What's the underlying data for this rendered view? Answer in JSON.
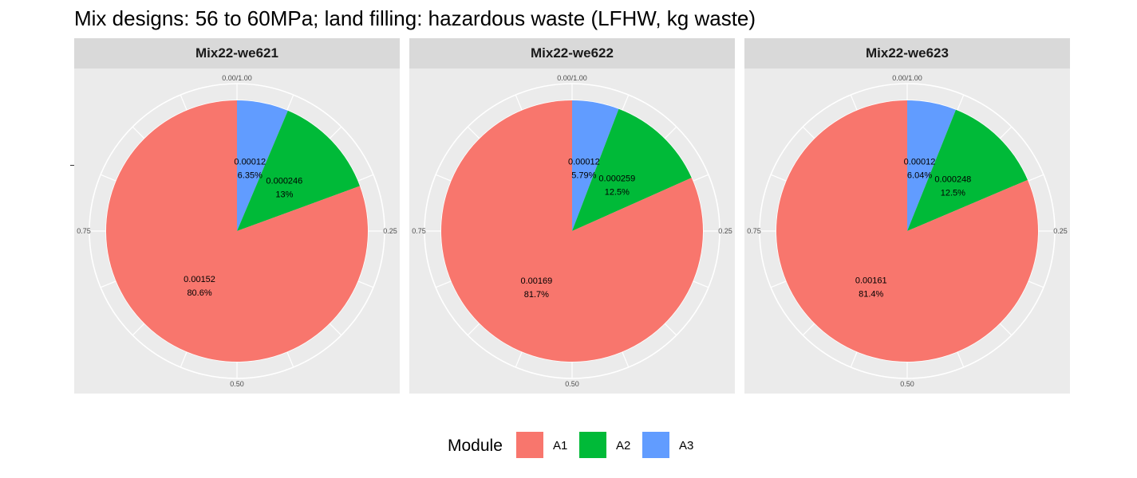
{
  "title": "Mix designs: 56 to 60MPa; land filling: hazardous waste (LFHW, kg waste)",
  "legend": {
    "title": "Module",
    "items": [
      {
        "label": "A1",
        "color": "#F8766D"
      },
      {
        "label": "A2",
        "color": "#00BA38"
      },
      {
        "label": "A3",
        "color": "#619CFF"
      }
    ]
  },
  "chart_data": [
    {
      "type": "pie",
      "facet": "Mix22-we621",
      "angle_ticks": [
        "0.00/1.00",
        "0.25",
        "0.50",
        "0.75"
      ],
      "slices": [
        {
          "module": "A3",
          "value": 0.00012,
          "value_label": "0.00012",
          "pct_label": "6.35%",
          "color": "#619CFF"
        },
        {
          "module": "A2",
          "value": 0.000246,
          "value_label": "0.000246",
          "pct_label": "13%",
          "color": "#00BA38"
        },
        {
          "module": "A1",
          "value": 0.00152,
          "value_label": "0.00152",
          "pct_label": "80.6%",
          "color": "#F8766D"
        }
      ]
    },
    {
      "type": "pie",
      "facet": "Mix22-we622",
      "angle_ticks": [
        "0.00/1.00",
        "0.25",
        "0.50",
        "0.75"
      ],
      "slices": [
        {
          "module": "A3",
          "value": 0.00012,
          "value_label": "0.00012",
          "pct_label": "5.79%",
          "color": "#619CFF"
        },
        {
          "module": "A2",
          "value": 0.000259,
          "value_label": "0.000259",
          "pct_label": "12.5%",
          "color": "#00BA38"
        },
        {
          "module": "A1",
          "value": 0.00169,
          "value_label": "0.00169",
          "pct_label": "81.7%",
          "color": "#F8766D"
        }
      ]
    },
    {
      "type": "pie",
      "facet": "Mix22-we623",
      "angle_ticks": [
        "0.00/1.00",
        "0.25",
        "0.50",
        "0.75"
      ],
      "slices": [
        {
          "module": "A3",
          "value": 0.00012,
          "value_label": "0.00012",
          "pct_label": "6.04%",
          "color": "#619CFF"
        },
        {
          "module": "A2",
          "value": 0.000248,
          "value_label": "0.000248",
          "pct_label": "12.5%",
          "color": "#00BA38"
        },
        {
          "module": "A1",
          "value": 0.00161,
          "value_label": "0.00161",
          "pct_label": "81.4%",
          "color": "#F8766D"
        }
      ]
    }
  ]
}
